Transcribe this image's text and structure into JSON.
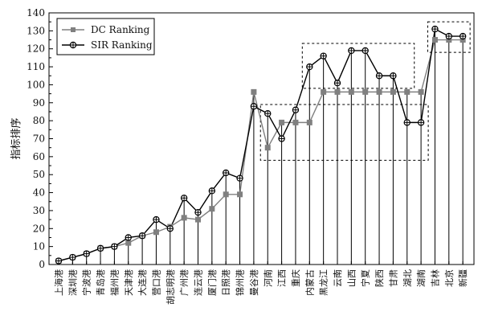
{
  "chart_data": {
    "type": "line",
    "title": "",
    "xlabel": "",
    "ylabel": "指标排序",
    "ylim": [
      0,
      140
    ],
    "yticks": [
      0,
      10,
      20,
      30,
      40,
      50,
      60,
      70,
      80,
      90,
      100,
      110,
      120,
      130,
      140
    ],
    "grid": false,
    "legend_position": "top-left",
    "categories": [
      "上海港",
      "深圳港",
      "宁波港",
      "青岛港",
      "福州港",
      "天津港",
      "大连港",
      "营口港",
      "胡志明港",
      "广州港",
      "连云港",
      "厦门港",
      "日照港",
      "锦州港",
      "曼谷港",
      "河南",
      "江西",
      "重庆",
      "内蒙古",
      "黑龙江",
      "云南",
      "山西",
      "宁夏",
      "陕西",
      "甘肃",
      "湖北",
      "湖南",
      "吉林",
      "北京",
      "新疆"
    ],
    "series": [
      {
        "name": "DC Ranking",
        "color": "#808080",
        "marker": "square",
        "values": [
          2,
          4,
          6,
          9,
          10,
          12,
          16,
          18,
          21,
          26,
          25,
          31,
          39,
          39,
          96,
          65,
          79,
          79,
          79,
          96,
          96,
          96,
          96,
          96,
          96,
          96,
          96,
          125,
          125,
          125
        ]
      },
      {
        "name": "SIR Ranking",
        "color": "#000000",
        "marker": "circle-plus",
        "values": [
          2,
          4,
          6,
          9,
          10,
          15,
          16,
          25,
          20,
          37,
          29,
          41,
          51,
          48,
          88,
          84,
          70,
          86,
          110,
          116,
          101,
          119,
          119,
          105,
          105,
          79,
          79,
          131,
          127,
          127
        ]
      }
    ],
    "annotations": [
      {
        "type": "dashed-box",
        "from_index": 15,
        "to_index": 26,
        "y_range": [
          58,
          89
        ]
      },
      {
        "type": "dashed-box",
        "from_index": 18,
        "to_index": 25,
        "y_range": [
          98,
          123
        ]
      },
      {
        "type": "dashed-box",
        "from_index": 27,
        "to_index": 29,
        "y_range": [
          118,
          135
        ]
      }
    ]
  }
}
